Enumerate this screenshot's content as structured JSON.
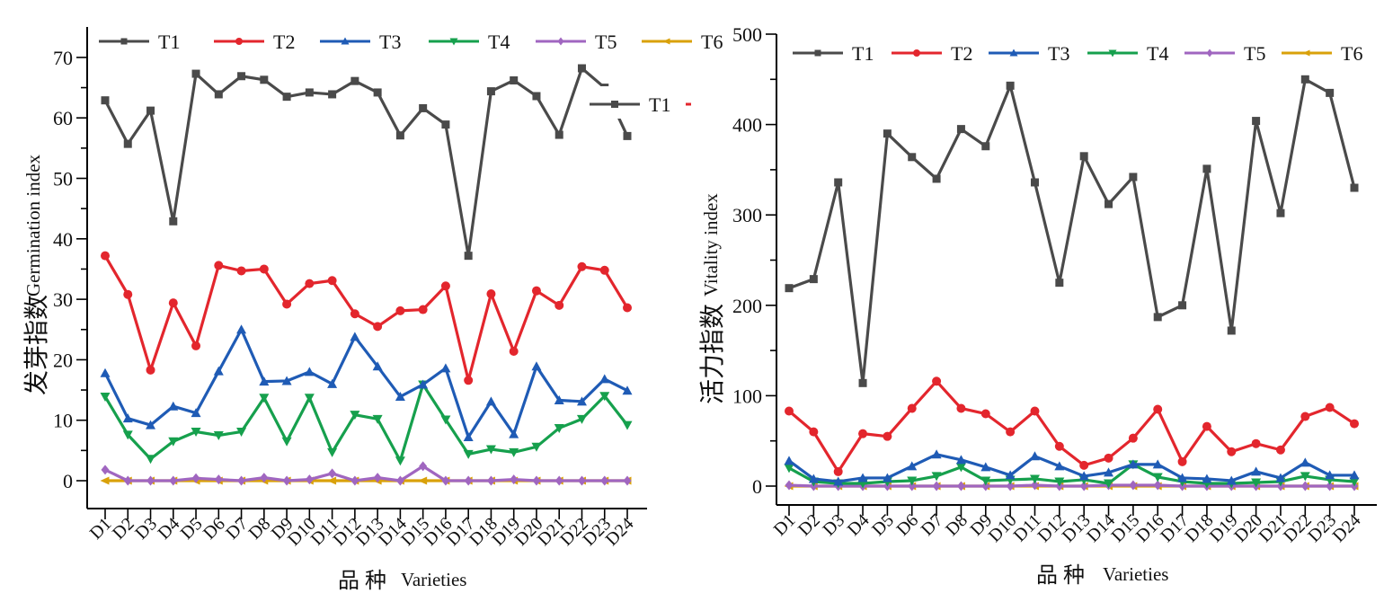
{
  "chart_data": [
    {
      "type": "line",
      "title": "",
      "ylabel_cn": "发芽指数",
      "ylabel": "Germination index",
      "xlabel_cn": "品 种",
      "xlabel": "Varieties",
      "ylim": [
        -4,
        75
      ],
      "yticks": [
        0,
        10,
        20,
        30,
        40,
        50,
        60,
        70
      ],
      "legend_position": "top",
      "categories": [
        "D1",
        "D2",
        "D3",
        "D4",
        "D5",
        "D6",
        "D7",
        "D8",
        "D9",
        "D10",
        "D11",
        "D12",
        "D13",
        "D14",
        "D15",
        "D16",
        "D17",
        "D18",
        "D19",
        "D20",
        "D21",
        "D22",
        "D23",
        "D24"
      ],
      "series": [
        {
          "name": "T1",
          "color": "#4a4a4a",
          "marker": "square",
          "values": [
            62.9,
            55.7,
            61.2,
            42.9,
            67.3,
            63.9,
            66.9,
            66.3,
            63.5,
            64.2,
            63.9,
            66.1,
            64.2,
            57.1,
            61.6,
            58.9,
            37.2,
            64.4,
            66.2,
            63.6,
            57.2,
            68.2,
            65.0,
            57.0
          ]
        },
        {
          "name": "T2",
          "color": "#e3262d",
          "marker": "circle",
          "values": [
            37.2,
            30.8,
            18.3,
            29.4,
            22.3,
            35.6,
            34.7,
            35.0,
            29.2,
            32.6,
            33.1,
            27.6,
            25.5,
            28.1,
            28.3,
            32.2,
            16.6,
            30.9,
            21.4,
            31.4,
            29.0,
            35.4,
            34.8,
            28.6
          ]
        },
        {
          "name": "T3",
          "color": "#1f5bb5",
          "marker": "triangle-up",
          "values": [
            17.8,
            10.3,
            9.2,
            12.3,
            11.2,
            18.1,
            25.0,
            16.4,
            16.5,
            18.0,
            16.0,
            23.8,
            18.9,
            13.9,
            15.9,
            18.6,
            7.2,
            13.1,
            7.7,
            18.9,
            13.3,
            13.1,
            16.8,
            14.9
          ]
        },
        {
          "name": "T4",
          "color": "#16a04d",
          "marker": "triangle-down",
          "values": [
            13.9,
            7.6,
            3.6,
            6.5,
            8.1,
            7.5,
            8.1,
            13.7,
            6.5,
            13.7,
            4.7,
            10.9,
            10.2,
            3.3,
            15.9,
            10.1,
            4.4,
            5.2,
            4.7,
            5.6,
            8.7,
            10.2,
            14.0,
            9.2
          ]
        },
        {
          "name": "T5",
          "color": "#a066c0",
          "marker": "diamond",
          "values": [
            1.8,
            0,
            0,
            0,
            0.4,
            0.2,
            0,
            0.5,
            0,
            0.2,
            1.2,
            0,
            0.5,
            0,
            2.4,
            0,
            0,
            0,
            0.2,
            0,
            0,
            0,
            0,
            0
          ]
        },
        {
          "name": "T6",
          "color": "#d9a10a",
          "marker": "triangle-left",
          "values": [
            0,
            0,
            0,
            0,
            0,
            0,
            0,
            0,
            0,
            0,
            0,
            0,
            0,
            0,
            0,
            0,
            0,
            0,
            0,
            0,
            0,
            0,
            0,
            0
          ]
        }
      ],
      "overlay_legend_fragment": {
        "label": "T1"
      }
    },
    {
      "type": "line",
      "title": "",
      "ylabel_cn": "活力指数",
      "ylabel": "Vitality index",
      "xlabel_cn": "品 种",
      "xlabel": "Varieties",
      "ylim": [
        -20,
        500
      ],
      "yticks": [
        0,
        100,
        200,
        300,
        400,
        500
      ],
      "legend_position": "top",
      "categories": [
        "D1",
        "D2",
        "D3",
        "D4",
        "D5",
        "D6",
        "D7",
        "D8",
        "D9",
        "D10",
        "D11",
        "D12",
        "D13",
        "D14",
        "D15",
        "D16",
        "D17",
        "D18",
        "D19",
        "D20",
        "D21",
        "D22",
        "D23",
        "D24"
      ],
      "series": [
        {
          "name": "T1",
          "color": "#4a4a4a",
          "marker": "square",
          "values": [
            219,
            229,
            336,
            114,
            390,
            364,
            340,
            395,
            376,
            443,
            336,
            225,
            365,
            312,
            342,
            187,
            200,
            351,
            172,
            404,
            302,
            450,
            435,
            330
          ]
        },
        {
          "name": "T2",
          "color": "#e3262d",
          "marker": "circle",
          "values": [
            83,
            60,
            16,
            58,
            55,
            86,
            116,
            86,
            80,
            60,
            83,
            44,
            23,
            31,
            53,
            85,
            27,
            66,
            38,
            47,
            40,
            77,
            87,
            69
          ]
        },
        {
          "name": "T3",
          "color": "#1f5bb5",
          "marker": "triangle-up",
          "values": [
            28,
            8,
            5,
            9,
            9,
            22,
            35,
            29,
            21,
            12,
            33,
            22,
            11,
            15,
            24,
            24,
            9,
            8,
            6,
            16,
            9,
            26,
            12,
            12
          ]
        },
        {
          "name": "T4",
          "color": "#16a04d",
          "marker": "triangle-down",
          "values": [
            20,
            5,
            3,
            3,
            5,
            6,
            11,
            21,
            6,
            7,
            8,
            5,
            7,
            3,
            24,
            10,
            5,
            3,
            3,
            4,
            5,
            11,
            7,
            5
          ]
        },
        {
          "name": "T5",
          "color": "#a066c0",
          "marker": "diamond",
          "values": [
            1,
            0,
            0,
            0,
            0,
            0,
            0,
            0,
            0,
            0,
            1,
            0,
            0,
            1,
            1,
            1,
            0,
            0,
            0,
            0,
            0,
            0,
            0,
            0
          ]
        },
        {
          "name": "T6",
          "color": "#d9a10a",
          "marker": "triangle-left",
          "values": [
            0,
            0,
            0,
            0,
            0,
            0,
            0,
            0,
            0,
            0,
            0,
            0,
            0,
            0,
            0,
            0,
            0,
            0,
            0,
            0,
            0,
            0,
            0,
            0
          ]
        }
      ]
    }
  ]
}
